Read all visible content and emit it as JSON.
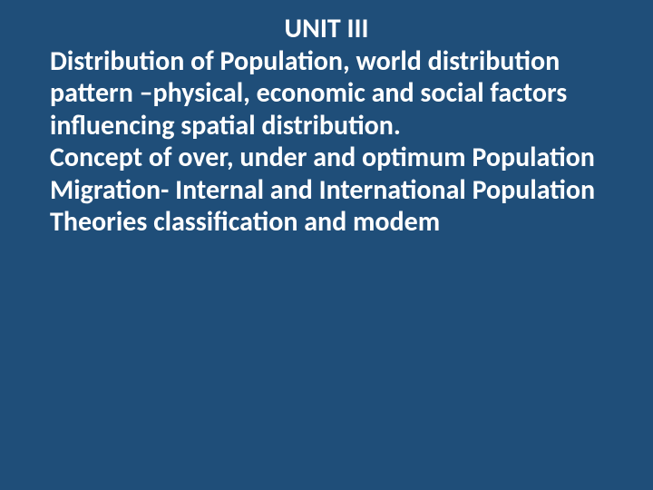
{
  "slide": {
    "background_color": "#1f4e79",
    "text_color": "#ffffff",
    "font_family": "Calibri",
    "title_fontsize": 30,
    "body_fontsize": 30,
    "font_weight": 700,
    "unit_title": "UNIT III",
    "lines": [
      "Distribution of Population, world distribution pattern –physical, economic and social factors influencing spatial distribution.",
      "Concept of over, under and optimum Population",
      "Migration- Internal and International Population",
      "Theories classification and modem"
    ]
  }
}
